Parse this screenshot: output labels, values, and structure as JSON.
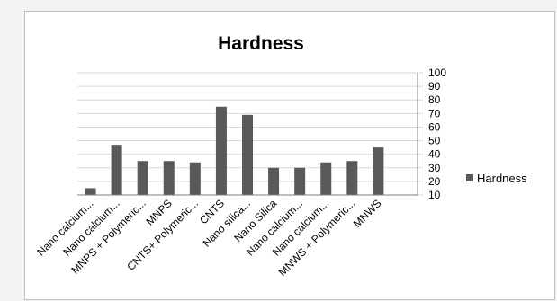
{
  "chart_data": {
    "type": "bar",
    "title": "Hardness",
    "categories": [
      "Nano calcium...",
      "Nano calcium...",
      "MNPS + Polymeric...",
      "MNPS",
      "CNTS+ Polymeric...",
      "CNTS",
      "Nano silica...",
      "Nano Silica",
      "Nano calcium...",
      "Nano calcium...",
      "MNWS + Polymeric...",
      "MNWS"
    ],
    "series": [
      {
        "name": "Hardness",
        "values": [
          15,
          47,
          35,
          35,
          34,
          75,
          69,
          30,
          30,
          34,
          35,
          45
        ]
      }
    ],
    "y_ticks": [
      "10",
      "20",
      "30",
      "40",
      "50",
      "60",
      "70",
      "80",
      "90",
      "100"
    ],
    "ylim": [
      10,
      100
    ],
    "y_axis_side": "right",
    "grid": true,
    "legend_position": "right",
    "bar_color": "#595959",
    "grid_color": "#d9d9d9"
  }
}
